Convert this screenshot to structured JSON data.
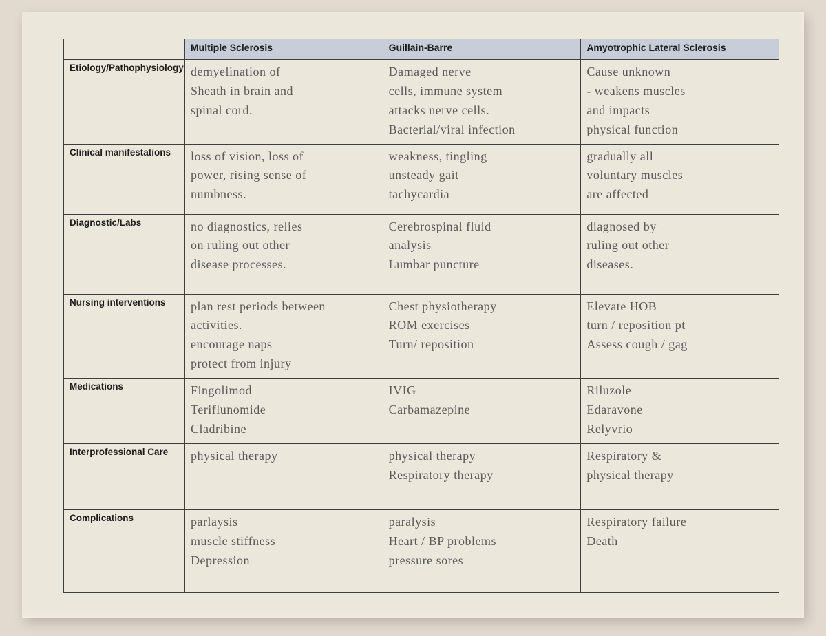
{
  "columns": [
    {
      "key": "ms",
      "label": "Multiple Sclerosis"
    },
    {
      "key": "gb",
      "label": "Guillain-Barre"
    },
    {
      "key": "als",
      "label": "Amyotrophic Lateral Sclerosis"
    }
  ],
  "rows": [
    {
      "key": "etio",
      "label": "Etiology/Pathophysiology",
      "ms": "demyelination of\nSheath in brain and\nspinal cord.",
      "gb": "Damaged nerve\ncells, immune system\nattacks nerve cells.\nBacterial/viral infection",
      "als": "Cause unknown\n- weakens muscles\nand impacts\nphysical function"
    },
    {
      "key": "clin",
      "label": "Clinical manifestations",
      "ms": "loss of vision, loss of\npower, rising sense of\nnumbness.",
      "gb": "weakness, tingling\nunsteady gait\ntachycardia",
      "als": "gradually all\nvoluntary muscles\nare affected"
    },
    {
      "key": "diag",
      "label": "Diagnostic/Labs",
      "ms": "no diagnostics, relies\non ruling out other\ndisease processes.",
      "gb": "Cerebrospinal fluid\nanalysis\nLumbar puncture",
      "als": "diagnosed by\nruling out other\ndiseases."
    },
    {
      "key": "nurs",
      "label": "Nursing interventions",
      "ms": "plan rest periods between\nactivities.\nencourage naps\nprotect from injury",
      "gb": "Chest physiotherapy\nROM exercises\nTurn/ reposition",
      "als": "Elevate HOB\nturn / reposition pt\nAssess cough / gag"
    },
    {
      "key": "meds",
      "label": "Medications",
      "ms": "Fingolimod\nTeriflunomide\nCladribine",
      "gb": "IVIG\nCarbamazepine",
      "als": "Riluzole\nEdaravone\nRelyvrio"
    },
    {
      "key": "inter",
      "label": "Interprofessional Care",
      "ms": "physical therapy",
      "gb": "physical therapy\nRespiratory therapy",
      "als": "Respiratory &\nphysical therapy"
    },
    {
      "key": "comp",
      "label": "Complications",
      "ms": "parlaysis\nmuscle stiffness\nDepression",
      "gb": "paralysis\nHeart / BP problems\npressure sores",
      "als": "Respiratory failure\nDeath"
    }
  ],
  "style": {
    "page_bg": "#e0dacf",
    "sheet_bg": "#ece7db",
    "header_bg": "#c7cdd9",
    "border": "#3f3f3f",
    "printed_text": "#1d1d1d",
    "hand_text": "#5a5a5a",
    "printed_fontsize": 14,
    "hand_fontsize": 18
  }
}
